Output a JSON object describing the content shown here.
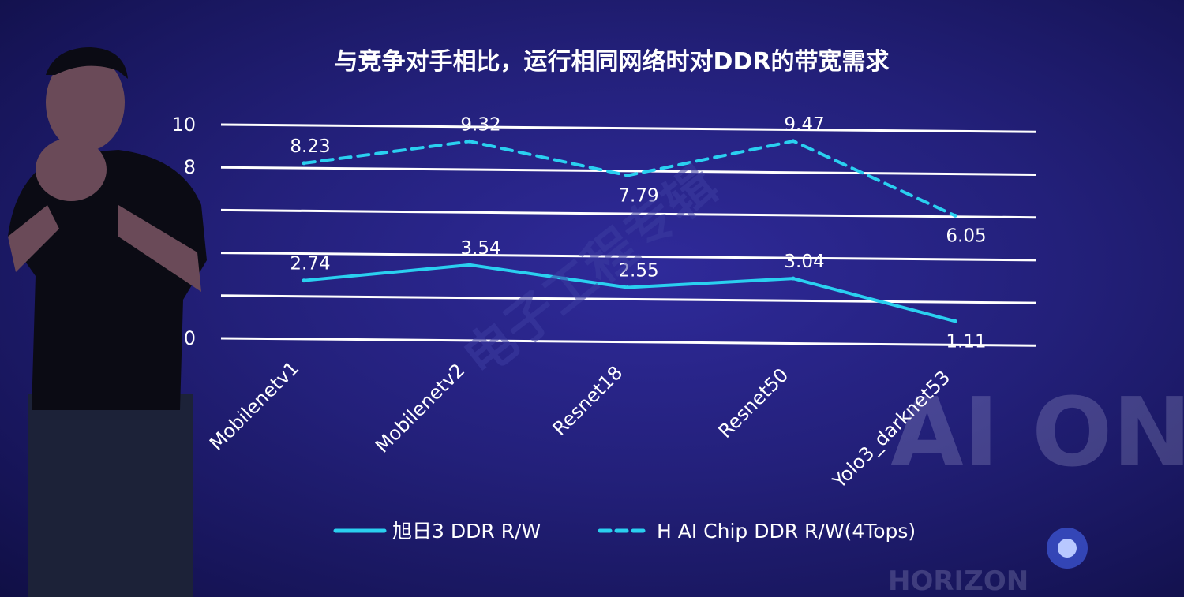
{
  "chart_data": {
    "type": "line",
    "title": "与竞争对手相比，运行相同网络时对DDR的带宽需求",
    "categories": [
      "Mobilenetv1",
      "Mobilenetv2",
      "Resnet18",
      "Resnet50",
      "Yolo3_darknet53"
    ],
    "yticks": [
      {
        "value": 0,
        "label": "0"
      },
      {
        "value": 2,
        "label": ""
      },
      {
        "value": 4,
        "label": ""
      },
      {
        "value": 6,
        "label": ""
      },
      {
        "value": 8,
        "label": "8"
      },
      {
        "value": 10,
        "label": "10"
      }
    ],
    "ylim": [
      0,
      10
    ],
    "grid": true,
    "legend_position": "bottom",
    "series": [
      {
        "name": "旭日3 DDR R/W",
        "values": [
          2.74,
          3.54,
          2.55,
          3.04,
          1.11
        ],
        "labels": [
          "2.74",
          "3.54",
          "2.55",
          "3.04",
          "1.11"
        ],
        "style": "solid",
        "color": "#2ad0f0"
      },
      {
        "name": "H AI Chip DDR R/W(4Tops)",
        "values": [
          8.23,
          9.32,
          7.79,
          9.47,
          6.05
        ],
        "labels": [
          "8.23",
          "9.32",
          "7.79",
          "9.47",
          "6.05"
        ],
        "style": "dashed",
        "color": "#2ad0f0"
      }
    ]
  },
  "watermark": "电子工程专辑",
  "backdrop": {
    "logo_letters": "AI ON",
    "logo_sub": "HORIZON"
  },
  "colors": {
    "background": "#23207a",
    "line": "#2ad0f0",
    "grid": "#ffffff",
    "text": "#ffffff"
  }
}
